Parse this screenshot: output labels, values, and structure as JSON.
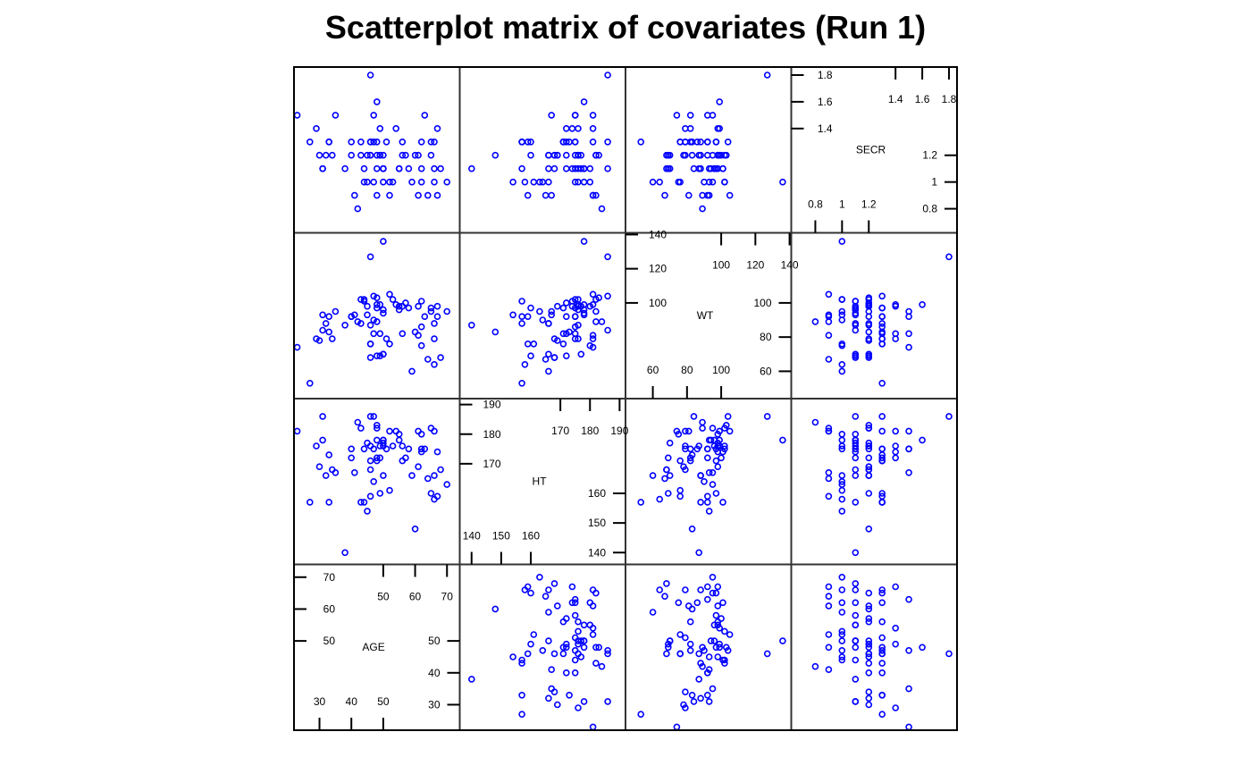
{
  "title": "Scatterplot matrix of covariates (Run 1)",
  "colors": {
    "points": "#0000ff",
    "frame": "#000000",
    "panel_border": "#333333",
    "text": "#000000"
  },
  "chart_data": {
    "type": "scatter",
    "subtype": "scatterplot-matrix",
    "title": "Scatterplot matrix of covariates (Run 1)",
    "variables": [
      {
        "name": "AGE",
        "range": [
          22,
          74
        ],
        "ticks_upper": [
          50,
          60,
          70
        ],
        "ticks_lower": [
          30,
          40,
          50
        ]
      },
      {
        "name": "HT",
        "range": [
          136,
          192
        ],
        "ticks_upper": [
          170,
          180,
          190
        ],
        "ticks_lower": [
          140,
          150,
          160
        ]
      },
      {
        "name": "WT",
        "range": [
          44,
          141
        ],
        "ticks_upper": [
          100,
          120,
          140
        ],
        "ticks_lower": [
          60,
          80,
          100
        ]
      },
      {
        "name": "SECR",
        "range": [
          0.62,
          1.86
        ],
        "ticks_upper": [
          1.4,
          1.6,
          1.8
        ],
        "ticks_lower": [
          0.8,
          1.0,
          1.2
        ]
      }
    ],
    "points": [
      [
        23,
        181,
        74,
        1.5
      ],
      [
        27,
        157,
        53,
        1.3
      ],
      [
        29,
        176,
        79,
        1.4
      ],
      [
        30,
        169,
        78,
        1.2
      ],
      [
        31,
        186,
        84,
        1.1
      ],
      [
        31,
        178,
        93,
        1.1
      ],
      [
        32,
        166,
        88,
        1.2
      ],
      [
        33,
        157,
        92,
        1.3
      ],
      [
        33,
        173,
        83,
        1.3
      ],
      [
        34,
        168,
        79,
        1.2
      ],
      [
        35,
        167,
        95,
        1.5
      ],
      [
        38,
        140,
        87,
        1.1
      ],
      [
        40,
        172,
        92,
        1.3
      ],
      [
        40,
        175,
        92,
        1.2
      ],
      [
        41,
        167,
        93,
        0.9
      ],
      [
        42,
        184,
        89,
        0.8
      ],
      [
        43,
        157,
        88,
        1.3
      ],
      [
        43,
        182,
        102,
        1.2
      ],
      [
        44,
        175,
        102,
        1.0
      ],
      [
        44,
        157,
        101,
        1.1
      ],
      [
        45,
        177,
        98,
        1.2
      ],
      [
        45,
        154,
        93,
        1.0
      ],
      [
        46,
        186,
        127,
        1.8
      ],
      [
        46,
        159,
        76,
        1.3
      ],
      [
        46,
        176,
        87,
        1.2
      ],
      [
        46,
        168,
        68,
        1.2
      ],
      [
        46,
        171,
        76,
        1.3
      ],
      [
        47,
        164,
        90,
        1.0
      ],
      [
        47,
        186,
        104,
        1.3
      ],
      [
        47,
        175,
        82,
        1.5
      ],
      [
        48,
        172,
        69,
        1.1
      ],
      [
        48,
        182,
        89,
        0.9
      ],
      [
        48,
        178,
        99,
        1.6
      ],
      [
        48,
        171,
        97,
        1.3
      ],
      [
        48,
        183,
        103,
        1.2
      ],
      [
        49,
        176,
        99,
        1.2
      ],
      [
        49,
        160,
        69,
        1.2
      ],
      [
        49,
        172,
        82,
        1.4
      ],
      [
        50,
        176,
        96,
        1.1
      ],
      [
        50,
        166,
        70,
        1.2
      ],
      [
        50,
        178,
        94,
        1.1
      ],
      [
        50,
        177,
        70,
        1.1
      ],
      [
        50,
        178,
        136,
        1.0
      ],
      [
        51,
        175,
        79,
        1.3
      ],
      [
        52,
        161,
        76,
        1.0
      ],
      [
        52,
        181,
        105,
        0.9
      ],
      [
        53,
        176,
        102,
        1.0
      ],
      [
        54,
        181,
        99,
        1.4
      ],
      [
        55,
        178,
        96,
        1.1
      ],
      [
        55,
        180,
        98,
        1.1
      ],
      [
        56,
        176,
        98,
        1.2
      ],
      [
        56,
        171,
        82,
        1.3
      ],
      [
        57,
        172,
        100,
        1.2
      ],
      [
        58,
        175,
        97,
        1.1
      ],
      [
        59,
        166,
        60,
        1.0
      ],
      [
        60,
        148,
        83,
        1.2
      ],
      [
        61,
        181,
        81,
        0.9
      ],
      [
        61,
        169,
        98,
        1.2
      ],
      [
        62,
        174,
        101,
        1.1
      ],
      [
        62,
        180,
        75,
        1.0
      ],
      [
        62,
        175,
        86,
        1.3
      ],
      [
        63,
        175,
        92,
        1.5
      ],
      [
        64,
        165,
        67,
        0.9
      ],
      [
        65,
        182,
        95,
        1.2
      ],
      [
        65,
        160,
        97,
        1.3
      ],
      [
        66,
        181,
        79,
        1.3
      ],
      [
        66,
        166,
        88,
        1.1
      ],
      [
        66,
        158,
        64,
        1.0
      ],
      [
        67,
        159,
        92,
        0.9
      ],
      [
        67,
        174,
        98,
        1.4
      ],
      [
        68,
        168,
        68,
        1.1
      ],
      [
        70,
        163,
        95,
        1.0
      ]
    ]
  }
}
